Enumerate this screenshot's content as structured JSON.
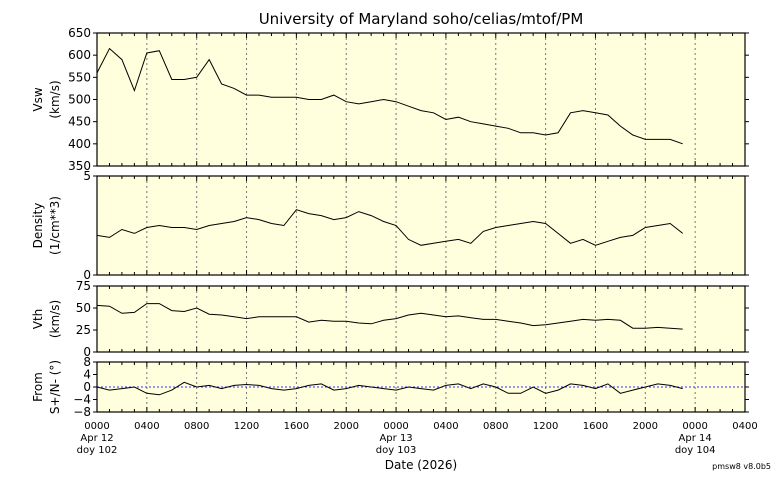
{
  "title": "University of Maryland  soho/celias/mtof/PM",
  "version": "pmsw8 v8.0b5",
  "chart_data": {
    "type": "line",
    "title": "University of Maryland  soho/celias/mtof/PM",
    "xlabel": "Date (2026)",
    "x_range_hours": [
      0,
      52
    ],
    "x_unit": "hours since 2026-04-12 0000",
    "x_tick_labels": [
      "0000",
      "0400",
      "0800",
      "1200",
      "1600",
      "2000",
      "0000",
      "0400",
      "0800",
      "1200",
      "1600",
      "2000",
      "0000",
      "0400"
    ],
    "date_labels": [
      {
        "hour": 0,
        "date": "Apr 12",
        "doy": "doy 102"
      },
      {
        "hour": 24,
        "date": "Apr 13",
        "doy": "doy 103"
      },
      {
        "hour": 48,
        "date": "Apr 14",
        "doy": "doy 104"
      }
    ],
    "grid": "vertical dotted every 4 hours",
    "hours": [
      0,
      1,
      2,
      3,
      4,
      5,
      6,
      7,
      8,
      9,
      10,
      11,
      12,
      13,
      14,
      15,
      16,
      17,
      18,
      19,
      20,
      21,
      22,
      23,
      24,
      25,
      26,
      27,
      28,
      29,
      30,
      31,
      32,
      33,
      34,
      35,
      36,
      37,
      38,
      39,
      40,
      41,
      42,
      43,
      44,
      45,
      46,
      47
    ],
    "panels": [
      {
        "name": "vsw",
        "ylabel": [
          "Vsw",
          "(km/s)"
        ],
        "ylim": [
          350,
          650
        ],
        "yticks": [
          350,
          400,
          450,
          500,
          550,
          600,
          650
        ],
        "values": [
          560,
          615,
          590,
          520,
          605,
          610,
          545,
          545,
          550,
          590,
          535,
          525,
          510,
          510,
          505,
          505,
          505,
          500,
          500,
          510,
          495,
          490,
          495,
          500,
          495,
          485,
          475,
          470,
          455,
          460,
          450,
          445,
          440,
          435,
          425,
          425,
          420,
          425,
          470,
          475,
          470,
          465,
          440,
          420,
          410,
          410,
          410,
          400
        ]
      },
      {
        "name": "density",
        "ylabel": [
          "Density",
          "(1/cm**3)"
        ],
        "ylim": [
          0,
          5
        ],
        "yticks": [
          0,
          5
        ],
        "values": [
          2.0,
          1.9,
          2.3,
          2.1,
          2.4,
          2.5,
          2.4,
          2.4,
          2.3,
          2.5,
          2.6,
          2.7,
          2.9,
          2.8,
          2.6,
          2.5,
          3.3,
          3.1,
          3.0,
          2.8,
          2.9,
          3.2,
          3.0,
          2.7,
          2.5,
          1.8,
          1.5,
          1.6,
          1.7,
          1.8,
          1.6,
          2.2,
          2.4,
          2.5,
          2.6,
          2.7,
          2.6,
          2.1,
          1.6,
          1.8,
          1.5,
          1.7,
          1.9,
          2.0,
          2.4,
          2.5,
          2.6,
          2.1
        ]
      },
      {
        "name": "vth",
        "ylabel": [
          "Vth",
          "(km/s)"
        ],
        "ylim": [
          0,
          75
        ],
        "yticks": [
          0,
          25,
          50,
          75
        ],
        "values": [
          53,
          52,
          44,
          45,
          55,
          55,
          47,
          46,
          50,
          43,
          42,
          40,
          38,
          40,
          40,
          40,
          40,
          34,
          36,
          35,
          35,
          33,
          32,
          36,
          38,
          42,
          44,
          42,
          40,
          41,
          39,
          37,
          37,
          35,
          33,
          30,
          31,
          33,
          35,
          37,
          36,
          37,
          36,
          27,
          27,
          28,
          27,
          26
        ]
      },
      {
        "name": "from",
        "ylabel": [
          "From",
          "S+/N- (°)"
        ],
        "ylim": [
          -8,
          8
        ],
        "yticks": [
          -8,
          -4,
          0,
          4,
          8
        ],
        "reference_line": 0,
        "values": [
          0,
          -1,
          -0.5,
          0,
          -2,
          -2.5,
          -1,
          1.5,
          0,
          0.5,
          -0.5,
          0.5,
          0.8,
          0.5,
          -0.5,
          -1,
          -0.5,
          0.5,
          1,
          -1,
          -0.5,
          0.5,
          0,
          -0.5,
          -1,
          0,
          -0.5,
          -1,
          0.5,
          1,
          -0.5,
          1,
          0,
          -2,
          -2,
          0,
          -2,
          -1,
          1,
          0.5,
          -0.5,
          1,
          -2,
          -1,
          0,
          1,
          0.5,
          -0.5
        ]
      }
    ],
    "colors": {
      "plot_bg": "#ffffdd",
      "line": "#000000",
      "reference": "#3333ff",
      "grid": "#777777"
    }
  }
}
